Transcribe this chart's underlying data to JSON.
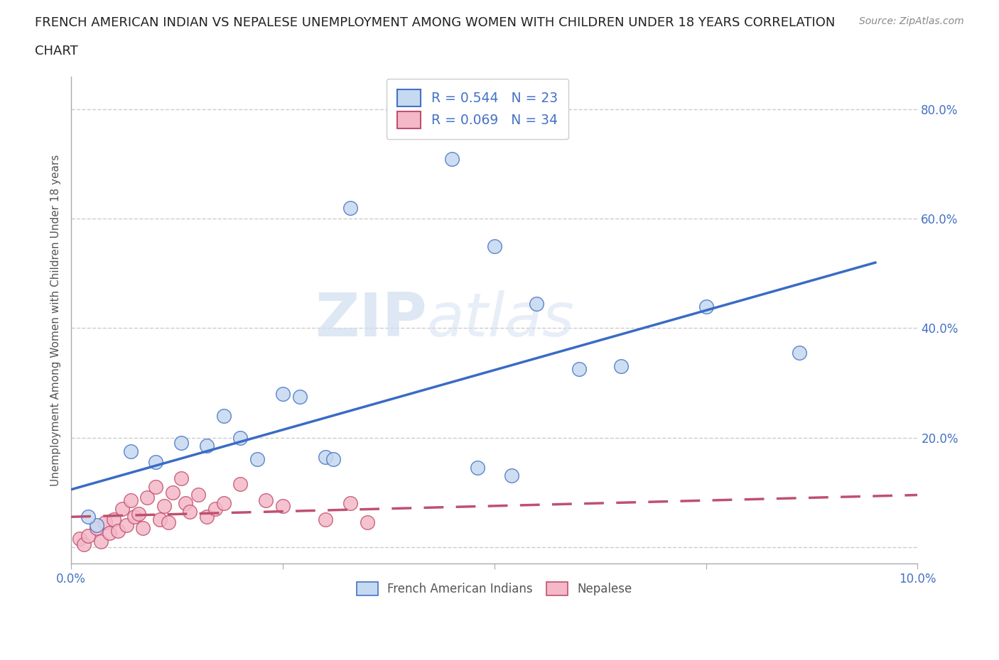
{
  "title_line1": "FRENCH AMERICAN INDIAN VS NEPALESE UNEMPLOYMENT AMONG WOMEN WITH CHILDREN UNDER 18 YEARS CORRELATION",
  "title_line2": "CHART",
  "source": "Source: ZipAtlas.com",
  "ylabel_label": "Unemployment Among Women with Children Under 18 years",
  "xlim": [
    0.0,
    10.0
  ],
  "ylim": [
    -3.0,
    86.0
  ],
  "watermark_zip": "ZIP",
  "watermark_atlas": "atlas",
  "french_R": 0.544,
  "french_N": 23,
  "nepalese_R": 0.069,
  "nepalese_N": 34,
  "french_fill": "#c5d9f0",
  "french_edge": "#4472c4",
  "nepalese_fill": "#f4b8c8",
  "nepalese_edge": "#c05070",
  "french_line_color": "#3a6bc4",
  "nepalese_line_color": "#c05070",
  "french_scatter_x": [
    0.3,
    0.7,
    1.0,
    1.3,
    1.6,
    1.8,
    2.0,
    2.2,
    2.5,
    2.7,
    3.0,
    3.3,
    4.5,
    5.0,
    5.2,
    6.0,
    6.5,
    7.5,
    8.6,
    0.2,
    3.1,
    4.8,
    5.5
  ],
  "french_scatter_y": [
    4.0,
    17.5,
    15.5,
    19.0,
    18.5,
    24.0,
    20.0,
    16.0,
    28.0,
    27.5,
    16.5,
    62.0,
    71.0,
    55.0,
    13.0,
    32.5,
    33.0,
    44.0,
    35.5,
    5.5,
    16.0,
    14.5,
    44.5
  ],
  "nepalese_scatter_x": [
    0.1,
    0.15,
    0.2,
    0.3,
    0.35,
    0.4,
    0.45,
    0.5,
    0.55,
    0.6,
    0.65,
    0.7,
    0.75,
    0.8,
    0.85,
    0.9,
    1.0,
    1.05,
    1.1,
    1.15,
    1.2,
    1.3,
    1.35,
    1.4,
    1.5,
    1.6,
    1.7,
    1.8,
    2.0,
    2.3,
    2.5,
    3.0,
    3.3,
    3.5
  ],
  "nepalese_scatter_y": [
    1.5,
    0.5,
    2.0,
    3.5,
    1.0,
    4.5,
    2.5,
    5.0,
    3.0,
    7.0,
    4.0,
    8.5,
    5.5,
    6.0,
    3.5,
    9.0,
    11.0,
    5.0,
    7.5,
    4.5,
    10.0,
    12.5,
    8.0,
    6.5,
    9.5,
    5.5,
    7.0,
    8.0,
    11.5,
    8.5,
    7.5,
    5.0,
    8.0,
    4.5
  ],
  "background_color": "#ffffff",
  "grid_color": "#cccccc",
  "french_line_x": [
    0.0,
    9.5
  ],
  "french_line_y": [
    10.5,
    52.0
  ],
  "nepalese_line_x": [
    0.0,
    10.0
  ],
  "nepalese_line_y": [
    5.5,
    9.5
  ]
}
